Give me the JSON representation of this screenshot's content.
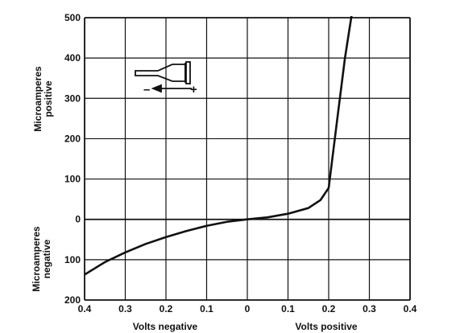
{
  "chart_data": {
    "type": "line",
    "x": [
      -0.4,
      -0.35,
      -0.3,
      -0.25,
      -0.2,
      -0.15,
      -0.1,
      -0.05,
      0.0,
      0.05,
      0.1,
      0.15,
      0.18,
      0.2,
      0.22,
      0.24,
      0.26
    ],
    "series": [
      {
        "values": [
          -137,
          -106,
          -82,
          -61,
          -44,
          -29,
          -16,
          -6,
          0,
          5,
          14,
          28,
          48,
          78,
          240,
          400,
          530
        ]
      }
    ],
    "xlim": [
      -0.4,
      0.4
    ],
    "ylim": [
      -200,
      500
    ],
    "x_ticks": [
      -0.4,
      -0.3,
      -0.2,
      -0.1,
      0,
      0.1,
      0.2,
      0.3,
      0.4
    ],
    "x_tick_labels": [
      "0.4",
      "0.3",
      "0.2",
      "0.1",
      "0",
      "0.1",
      "0.2",
      "0.3",
      "0.4"
    ],
    "y_ticks": [
      500,
      400,
      300,
      200,
      100,
      0,
      -100,
      -200
    ],
    "y_tick_labels": [
      "500",
      "400",
      "300",
      "200",
      "100",
      "0",
      "100",
      "200"
    ],
    "xlabel_negative": "Volts negative",
    "xlabel_positive": "Volts positive",
    "ylabel_positive": [
      "Microamperes",
      "positive"
    ],
    "ylabel_negative": [
      "Microamperes",
      "negative"
    ],
    "grid": true,
    "inset_symbols": {
      "minus": "–",
      "plus": "+"
    },
    "colors": {
      "line": "#111111",
      "grid": "#111111",
      "background": "#ffffff"
    }
  }
}
